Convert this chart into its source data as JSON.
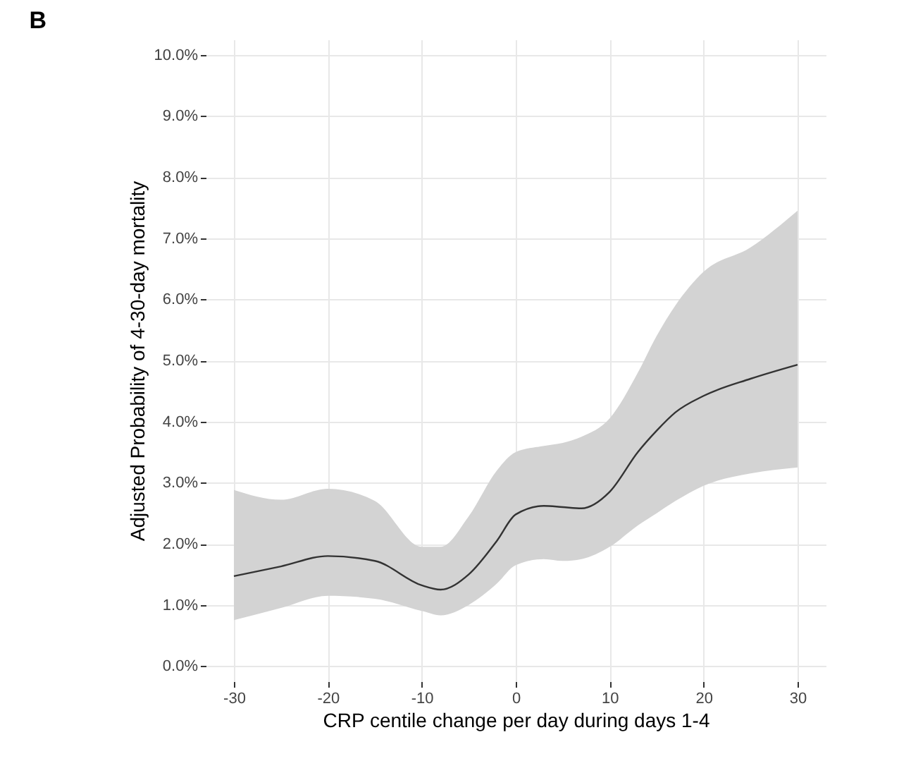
{
  "chart_data": {
    "type": "line",
    "annotations": [
      "B"
    ],
    "xlabel": "CRP centile change per day during days 1-4",
    "ylabel": "Adjusted Probability of 4-30-day mortality",
    "x": [
      -30,
      -25,
      -20,
      -15,
      -10,
      -8,
      -5,
      -2,
      0,
      3,
      5,
      7,
      10,
      13,
      15,
      17,
      20,
      25,
      30
    ],
    "series": [
      {
        "color": "#333333",
        "values": [
          1.47,
          1.63,
          1.8,
          1.72,
          1.32,
          1.25,
          1.5,
          2.05,
          2.48,
          2.62,
          2.6,
          2.58,
          2.85,
          3.5,
          3.85,
          4.15,
          4.42,
          4.7,
          4.93
        ],
        "lower": [
          0.75,
          0.95,
          1.15,
          1.1,
          0.9,
          0.83,
          1.0,
          1.35,
          1.65,
          1.75,
          1.72,
          1.75,
          1.95,
          2.3,
          2.5,
          2.7,
          2.95,
          3.15,
          3.25
        ],
        "upper": [
          2.88,
          2.72,
          2.9,
          2.7,
          1.95,
          1.95,
          2.45,
          3.2,
          3.5,
          3.6,
          3.65,
          3.75,
          4.05,
          4.8,
          5.4,
          5.9,
          6.45,
          6.85,
          7.45
        ]
      }
    ],
    "xlim": [
      -33,
      33
    ],
    "xticks": [
      -30,
      -20,
      -10,
      0,
      10,
      20,
      30
    ],
    "ylim": [
      -0.25,
      10.25
    ],
    "yticks": [
      {
        "value": 0,
        "label": "0.0%"
      },
      {
        "value": 1,
        "label": "1.0%"
      },
      {
        "value": 2,
        "label": "2.0%"
      },
      {
        "value": 3,
        "label": "3.0%"
      },
      {
        "value": 4,
        "label": "4.0%"
      },
      {
        "value": 5,
        "label": "5.0%"
      },
      {
        "value": 6,
        "label": "6.0%"
      },
      {
        "value": 7,
        "label": "7.0%"
      },
      {
        "value": 8,
        "label": "8.0%"
      },
      {
        "value": 9,
        "label": "9.0%"
      },
      {
        "value": 10,
        "label": "10.0%"
      }
    ],
    "grid": true,
    "line_style": "solid"
  }
}
